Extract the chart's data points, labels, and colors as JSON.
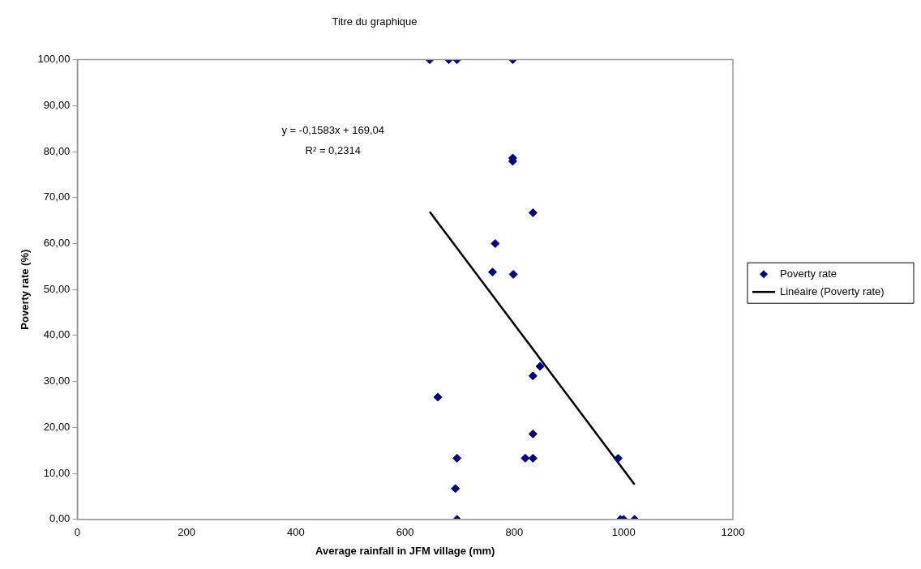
{
  "chart_data": {
    "type": "scatter",
    "title": "Titre du graphique",
    "xlabel": "Average rainfall in JFM village (mm)",
    "ylabel": "Poverty rate (%)",
    "series": [
      {
        "name": "Poverty rate",
        "type": "scatter",
        "color": "#000080",
        "marker": "diamond",
        "x": [
          645,
          680,
          695,
          797,
          797,
          797,
          834,
          765,
          760,
          798,
          847,
          834,
          660,
          834,
          695,
          820,
          834,
          990,
          692,
          695,
          994,
          1000,
          1020
        ],
        "values": [
          100,
          100,
          100,
          100,
          78.6,
          77.9,
          66.7,
          60.0,
          53.8,
          53.3,
          33.3,
          31.2,
          26.6,
          18.6,
          13.3,
          13.3,
          13.3,
          13.3,
          6.7,
          0,
          0,
          0,
          0
        ]
      },
      {
        "name": "Linéaire (Poverty rate)",
        "type": "line",
        "color": "#000000",
        "marker": "none",
        "line_style": "solid",
        "x": [
          645,
          1020
        ],
        "values": [
          66.9,
          7.6
        ]
      }
    ],
    "xlim": [
      0,
      1200
    ],
    "xticks": [
      0,
      200,
      400,
      600,
      800,
      1000,
      1200
    ],
    "ylim": [
      0,
      100
    ],
    "yticks": [
      {
        "value": 0,
        "label": "0,00"
      },
      {
        "value": 10,
        "label": "10,00"
      },
      {
        "value": 20,
        "label": "20,00"
      },
      {
        "value": 30,
        "label": "30,00"
      },
      {
        "value": 40,
        "label": "40,00"
      },
      {
        "value": 50,
        "label": "50,00"
      },
      {
        "value": 60,
        "label": "60,00"
      },
      {
        "value": 70,
        "label": "70,00"
      },
      {
        "value": 80,
        "label": "80,00"
      },
      {
        "value": 90,
        "label": "90,00"
      },
      {
        "value": 100,
        "label": "100,00"
      }
    ],
    "grid": false,
    "legend": "right",
    "annotations": [
      "y = -0,1583x + 169,04",
      "R² = 0,2314"
    ]
  }
}
